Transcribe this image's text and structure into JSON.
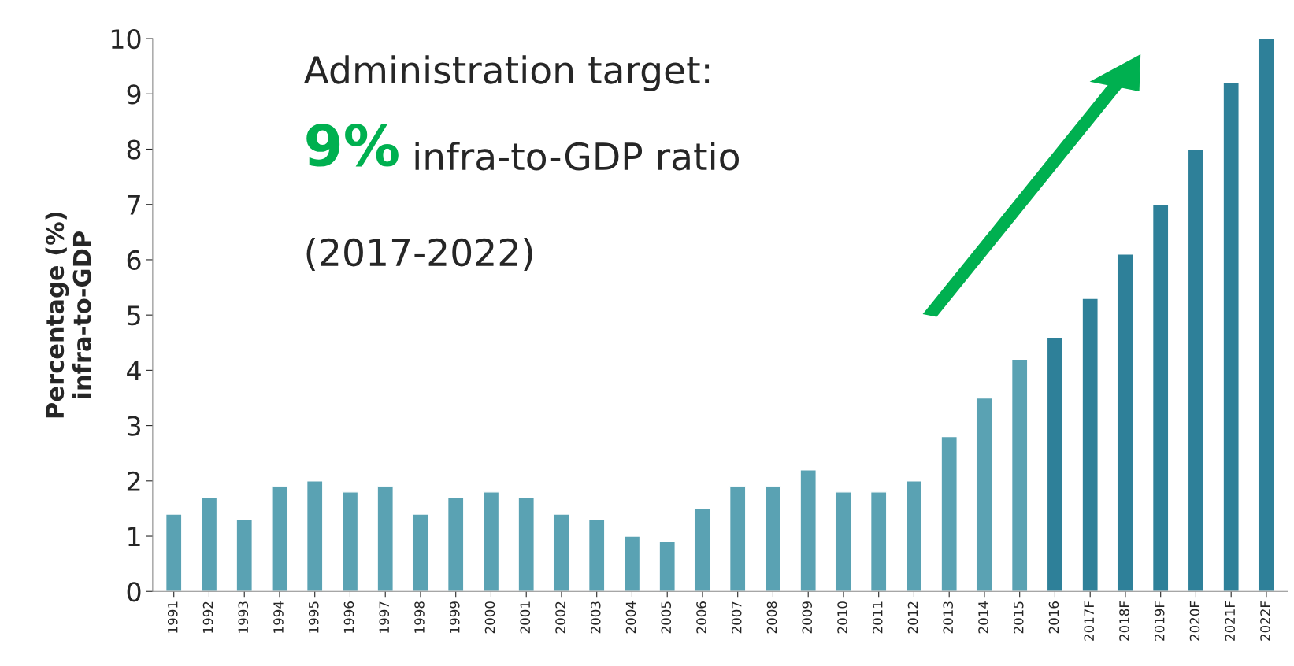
{
  "chart_data": {
    "type": "bar",
    "ylabel": "Percentage (%)\ninfra-to-GDP",
    "categories": [
      "1991",
      "1992",
      "1993",
      "1994",
      "1995",
      "1996",
      "1997",
      "1998",
      "1999",
      "2000",
      "2001",
      "2002",
      "2003",
      "2004",
      "2005",
      "2006",
      "2007",
      "2008",
      "2009",
      "2010",
      "2011",
      "2012",
      "2013",
      "2014",
      "2015",
      "2016",
      "2017F",
      "2018F",
      "2019F",
      "2020F",
      "2021F",
      "2022F"
    ],
    "values": [
      1.4,
      1.7,
      1.3,
      1.9,
      2.0,
      1.8,
      1.9,
      1.4,
      1.7,
      1.8,
      1.7,
      1.4,
      1.3,
      1.0,
      0.9,
      1.5,
      1.9,
      1.9,
      2.2,
      1.8,
      1.8,
      2.0,
      2.8,
      3.5,
      4.2,
      4.6,
      5.3,
      6.1,
      7.0,
      8.0,
      9.2,
      10.0
    ],
    "colors": [
      "#5aa2b3",
      "#5aa2b3",
      "#5aa2b3",
      "#5aa2b3",
      "#5aa2b3",
      "#5aa2b3",
      "#5aa2b3",
      "#5aa2b3",
      "#5aa2b3",
      "#5aa2b3",
      "#5aa2b3",
      "#5aa2b3",
      "#5aa2b3",
      "#5aa2b3",
      "#5aa2b3",
      "#5aa2b3",
      "#5aa2b3",
      "#5aa2b3",
      "#5aa2b3",
      "#5aa2b3",
      "#5aa2b3",
      "#5aa2b3",
      "#5aa2b3",
      "#5aa2b3",
      "#5aa2b3",
      "#2e8099",
      "#2e8099",
      "#2e8099",
      "#2e8099",
      "#2e8099",
      "#2e8099",
      "#2e8099"
    ],
    "ylim": [
      0,
      10
    ],
    "yticks": [
      0,
      1,
      2,
      3,
      4,
      5,
      6,
      7,
      8,
      9,
      10
    ],
    "grid": false,
    "legend": false,
    "annotations": [
      "Administration target:",
      "9%",
      "infra-to-GDP ratio",
      "(2017-2022)"
    ]
  }
}
